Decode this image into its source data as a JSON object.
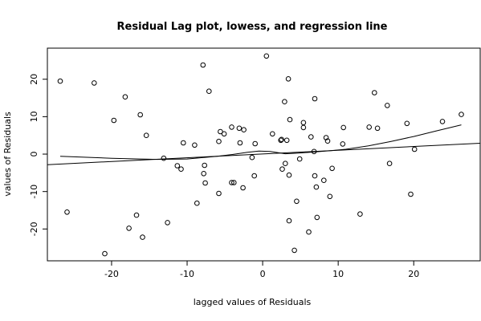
{
  "chart_data": {
    "type": "scatter",
    "title": "Residual Lag plot, lowess, and regression line",
    "xlabel": "lagged values of Residuals",
    "ylabel": "values of Residuals",
    "xlim": [
      -28.5,
      28.8
    ],
    "ylim": [
      -28.5,
      28.3
    ],
    "x_ticks": [
      -20,
      -10,
      0,
      10,
      20
    ],
    "y_ticks": [
      -20,
      -10,
      0,
      10,
      20
    ],
    "grid": false,
    "points": [
      {
        "x": -26.8,
        "y": 19.5
      },
      {
        "x": -25.9,
        "y": -15.5
      },
      {
        "x": -22.3,
        "y": 19.0
      },
      {
        "x": -20.9,
        "y": -26.6
      },
      {
        "x": -19.7,
        "y": 9.0
      },
      {
        "x": -18.2,
        "y": 15.3
      },
      {
        "x": -17.7,
        "y": -19.8
      },
      {
        "x": -16.7,
        "y": -16.3
      },
      {
        "x": -16.2,
        "y": 10.5
      },
      {
        "x": -15.9,
        "y": -22.2
      },
      {
        "x": -15.4,
        "y": 5.0
      },
      {
        "x": -13.1,
        "y": -1.1
      },
      {
        "x": -12.6,
        "y": -18.3
      },
      {
        "x": -11.3,
        "y": -3.1
      },
      {
        "x": -10.8,
        "y": -4.0
      },
      {
        "x": -10.5,
        "y": 3.0
      },
      {
        "x": -9.0,
        "y": 2.4
      },
      {
        "x": -8.7,
        "y": -13.1
      },
      {
        "x": -7.9,
        "y": 23.8
      },
      {
        "x": -7.7,
        "y": -3.0
      },
      {
        "x": -7.8,
        "y": -5.2
      },
      {
        "x": -7.6,
        "y": -7.7
      },
      {
        "x": -7.1,
        "y": 16.8
      },
      {
        "x": -5.8,
        "y": 3.4
      },
      {
        "x": -5.8,
        "y": -10.5
      },
      {
        "x": -5.6,
        "y": 6.0
      },
      {
        "x": -5.1,
        "y": 5.4
      },
      {
        "x": -4.1,
        "y": 7.2
      },
      {
        "x": -4.1,
        "y": -7.6
      },
      {
        "x": -3.8,
        "y": -7.6
      },
      {
        "x": -3.1,
        "y": 6.9
      },
      {
        "x": -3.0,
        "y": 3.0
      },
      {
        "x": -2.6,
        "y": -9.0
      },
      {
        "x": -2.5,
        "y": 6.5
      },
      {
        "x": -1.4,
        "y": -0.9
      },
      {
        "x": -1.1,
        "y": -5.8
      },
      {
        "x": -1.0,
        "y": 2.8
      },
      {
        "x": 0.5,
        "y": 26.2
      },
      {
        "x": 1.3,
        "y": 5.4
      },
      {
        "x": 2.4,
        "y": 3.7
      },
      {
        "x": 2.5,
        "y": 3.9
      },
      {
        "x": 2.6,
        "y": -4.0
      },
      {
        "x": 2.9,
        "y": 14.0
      },
      {
        "x": 3.0,
        "y": -2.5
      },
      {
        "x": 3.2,
        "y": 3.7
      },
      {
        "x": 3.4,
        "y": 20.1
      },
      {
        "x": 3.5,
        "y": -17.8
      },
      {
        "x": 3.5,
        "y": -5.6
      },
      {
        "x": 3.6,
        "y": 9.2
      },
      {
        "x": 4.2,
        "y": -25.7
      },
      {
        "x": 4.5,
        "y": -12.6
      },
      {
        "x": 4.9,
        "y": -1.3
      },
      {
        "x": 5.4,
        "y": 8.4
      },
      {
        "x": 5.4,
        "y": 7.1
      },
      {
        "x": 6.1,
        "y": -20.8
      },
      {
        "x": 6.4,
        "y": 4.6
      },
      {
        "x": 6.8,
        "y": 0.7
      },
      {
        "x": 6.9,
        "y": 14.8
      },
      {
        "x": 6.9,
        "y": -5.8
      },
      {
        "x": 7.1,
        "y": -8.8
      },
      {
        "x": 7.2,
        "y": -16.9
      },
      {
        "x": 8.1,
        "y": -7.0
      },
      {
        "x": 8.4,
        "y": 4.4
      },
      {
        "x": 8.6,
        "y": 3.5
      },
      {
        "x": 8.9,
        "y": -11.3
      },
      {
        "x": 9.2,
        "y": -3.8
      },
      {
        "x": 10.6,
        "y": 2.7
      },
      {
        "x": 10.7,
        "y": 7.1
      },
      {
        "x": 12.9,
        "y": -16.0
      },
      {
        "x": 14.1,
        "y": 7.2
      },
      {
        "x": 14.8,
        "y": 16.4
      },
      {
        "x": 15.2,
        "y": 6.9
      },
      {
        "x": 16.5,
        "y": 13.0
      },
      {
        "x": 16.8,
        "y": -2.5
      },
      {
        "x": 19.1,
        "y": 8.2
      },
      {
        "x": 19.6,
        "y": -10.7
      },
      {
        "x": 20.1,
        "y": 1.3
      },
      {
        "x": 23.8,
        "y": 8.7
      },
      {
        "x": 26.3,
        "y": 10.6
      }
    ],
    "lowess": [
      {
        "x": -26.8,
        "y": -0.6
      },
      {
        "x": -20.0,
        "y": -1.1
      },
      {
        "x": -14.0,
        "y": -1.4
      },
      {
        "x": -10.0,
        "y": -1.3
      },
      {
        "x": -6.0,
        "y": -0.6
      },
      {
        "x": -4.0,
        "y": -0.1
      },
      {
        "x": -2.0,
        "y": 0.5
      },
      {
        "x": -0.5,
        "y": 0.8
      },
      {
        "x": 1.0,
        "y": 0.7
      },
      {
        "x": 3.0,
        "y": 0.1
      },
      {
        "x": 5.0,
        "y": 0.3
      },
      {
        "x": 7.0,
        "y": 0.6
      },
      {
        "x": 9.0,
        "y": 0.9
      },
      {
        "x": 11.0,
        "y": 1.3
      },
      {
        "x": 14.0,
        "y": 2.2
      },
      {
        "x": 17.0,
        "y": 3.4
      },
      {
        "x": 20.0,
        "y": 4.7
      },
      {
        "x": 23.0,
        "y": 6.2
      },
      {
        "x": 26.3,
        "y": 7.8
      }
    ],
    "regression": {
      "intercept": 0.03,
      "slope": 0.1
    }
  }
}
